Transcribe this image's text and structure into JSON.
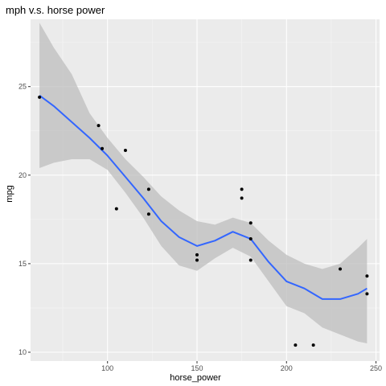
{
  "chart_data": {
    "type": "scatter",
    "title": "mph v.s. horse power",
    "xlabel": "horse_power",
    "ylabel": "mpg",
    "xlim": [
      57,
      252
    ],
    "ylim": [
      9.5,
      28.8
    ],
    "x_ticks": [
      100,
      150,
      200,
      250
    ],
    "y_ticks": [
      10,
      15,
      20,
      25
    ],
    "grid": true,
    "colors": {
      "panel_bg": "#ebebeb",
      "grid_major": "#ffffff",
      "points": "#000000",
      "smooth_line": "#3366ff",
      "confidence_band": "#bdbdbd"
    },
    "points": [
      {
        "x": 62,
        "y": 24.4
      },
      {
        "x": 95,
        "y": 22.8
      },
      {
        "x": 97,
        "y": 21.5
      },
      {
        "x": 105,
        "y": 18.1
      },
      {
        "x": 110,
        "y": 21.4
      },
      {
        "x": 123,
        "y": 19.2
      },
      {
        "x": 123,
        "y": 17.8
      },
      {
        "x": 150,
        "y": 15.5
      },
      {
        "x": 150,
        "y": 15.2
      },
      {
        "x": 175,
        "y": 19.2
      },
      {
        "x": 175,
        "y": 18.7
      },
      {
        "x": 180,
        "y": 17.3
      },
      {
        "x": 180,
        "y": 16.4
      },
      {
        "x": 180,
        "y": 15.2
      },
      {
        "x": 205,
        "y": 10.4
      },
      {
        "x": 215,
        "y": 10.4
      },
      {
        "x": 230,
        "y": 14.7
      },
      {
        "x": 245,
        "y": 14.3
      },
      {
        "x": 245,
        "y": 13.3
      }
    ],
    "smooth": [
      {
        "x": 62,
        "y": 24.5,
        "lo": 20.4,
        "hi": 28.6
      },
      {
        "x": 70,
        "y": 23.9,
        "lo": 20.7,
        "hi": 27.2
      },
      {
        "x": 80,
        "y": 23.0,
        "lo": 20.9,
        "hi": 25.7
      },
      {
        "x": 90,
        "y": 22.1,
        "lo": 20.9,
        "hi": 23.5
      },
      {
        "x": 100,
        "y": 21.1,
        "lo": 20.3,
        "hi": 22.1
      },
      {
        "x": 110,
        "y": 19.9,
        "lo": 19.0,
        "hi": 20.9
      },
      {
        "x": 120,
        "y": 18.7,
        "lo": 17.6,
        "hi": 19.9
      },
      {
        "x": 130,
        "y": 17.4,
        "lo": 16.0,
        "hi": 18.8
      },
      {
        "x": 140,
        "y": 16.5,
        "lo": 14.9,
        "hi": 18.0
      },
      {
        "x": 150,
        "y": 16.0,
        "lo": 14.6,
        "hi": 17.4
      },
      {
        "x": 160,
        "y": 16.3,
        "lo": 15.3,
        "hi": 17.2
      },
      {
        "x": 170,
        "y": 16.8,
        "lo": 15.9,
        "hi": 17.6
      },
      {
        "x": 180,
        "y": 16.4,
        "lo": 15.4,
        "hi": 17.3
      },
      {
        "x": 190,
        "y": 15.1,
        "lo": 14.0,
        "hi": 16.3
      },
      {
        "x": 200,
        "y": 14.0,
        "lo": 12.6,
        "hi": 15.5
      },
      {
        "x": 210,
        "y": 13.6,
        "lo": 12.2,
        "hi": 15.0
      },
      {
        "x": 220,
        "y": 13.0,
        "lo": 11.4,
        "hi": 14.7
      },
      {
        "x": 230,
        "y": 13.0,
        "lo": 11.0,
        "hi": 15.0
      },
      {
        "x": 240,
        "y": 13.3,
        "lo": 10.6,
        "hi": 15.9
      },
      {
        "x": 245,
        "y": 13.6,
        "lo": 10.5,
        "hi": 16.4
      }
    ]
  }
}
